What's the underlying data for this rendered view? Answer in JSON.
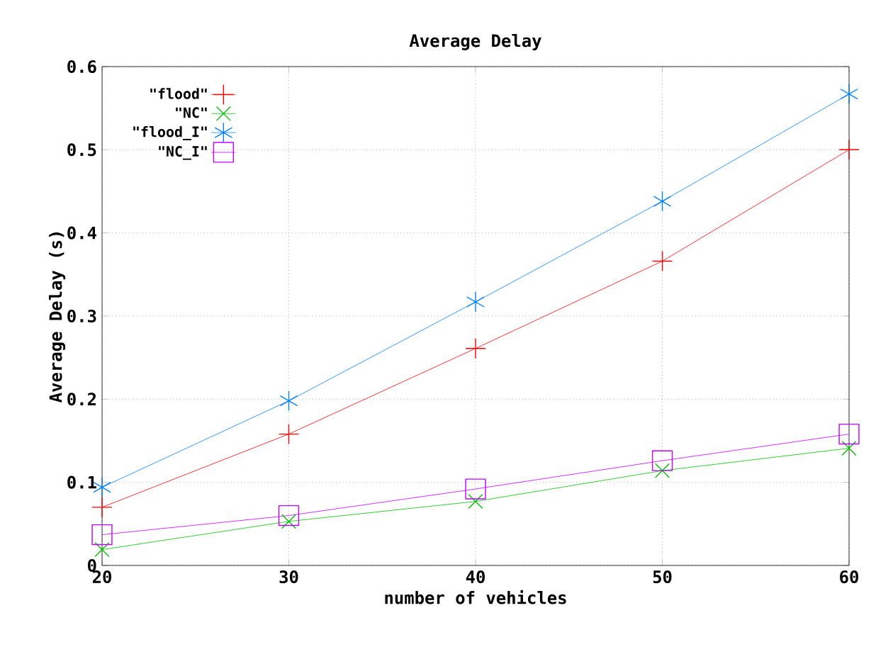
{
  "chart_data": {
    "type": "line",
    "title": "Average Delay",
    "xlabel": "number of vehicles",
    "ylabel": "Average Delay (s)",
    "x": [
      20,
      30,
      40,
      50,
      60
    ],
    "series": [
      {
        "name": "\"flood\"",
        "color": "#ff0000",
        "marker": "cross",
        "values": [
          0.07,
          0.158,
          0.261,
          0.366,
          0.5
        ]
      },
      {
        "name": "\"NC\"",
        "color": "#00c000",
        "marker": "cross",
        "values": [
          0.019,
          0.053,
          0.077,
          0.114,
          0.141
        ]
      },
      {
        "name": "\"flood_I\"",
        "color": "#0080ff",
        "marker": "cross",
        "values": [
          0.094,
          0.198,
          0.317,
          0.438,
          0.567
        ]
      },
      {
        "name": "\"NC_I\"",
        "color": "#c000ff",
        "marker": "square",
        "values": [
          0.037,
          0.06,
          0.092,
          0.126,
          0.158
        ]
      }
    ],
    "xlim": [
      20,
      60
    ],
    "ylim": [
      0,
      0.6
    ],
    "xticks": [
      20,
      30,
      40,
      50,
      60
    ],
    "yticks": [
      0,
      0.1,
      0.2,
      0.3,
      0.4,
      0.5,
      0.6
    ],
    "grid": true,
    "legend": "top left",
    "line_style": "solid"
  }
}
